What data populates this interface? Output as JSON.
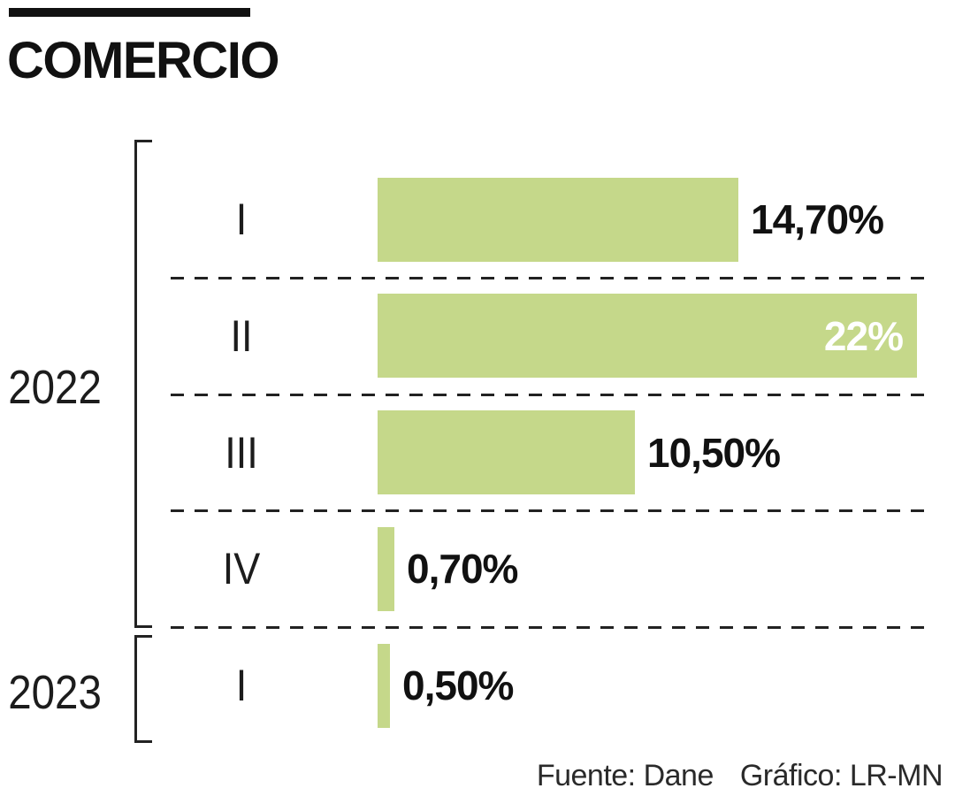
{
  "page": {
    "title": "COMERCIO"
  },
  "footer": {
    "source": "Fuente: Dane",
    "credit": "Gráfico: LR-MN"
  },
  "colors": {
    "bar_fill": "#c5d88a",
    "inside_label_text": "#ffffff",
    "outside_label_text": "#111111",
    "line_color": "#222222",
    "title_color": "#111111"
  },
  "chart_data": {
    "type": "bar",
    "orientation": "horizontal",
    "title": "COMERCIO",
    "value_unit": "%",
    "xlim": [
      0,
      22
    ],
    "grid": "dashed-row-separators",
    "groups": [
      {
        "year": "2022",
        "rows": [
          {
            "quarter": "I",
            "value": 14.7,
            "label": "14,70%",
            "label_position": "outside"
          },
          {
            "quarter": "II",
            "value": 22,
            "label": "22%",
            "label_position": "inside"
          },
          {
            "quarter": "III",
            "value": 10.5,
            "label": "10,50%",
            "label_position": "outside"
          },
          {
            "quarter": "IV",
            "value": 0.7,
            "label": "0,70%",
            "label_position": "outside"
          }
        ]
      },
      {
        "year": "2023",
        "rows": [
          {
            "quarter": "I",
            "value": 0.5,
            "label": "0,50%",
            "label_position": "outside"
          }
        ]
      }
    ],
    "source": "Fuente: Dane",
    "credit": "Gráfico: LR-MN"
  }
}
